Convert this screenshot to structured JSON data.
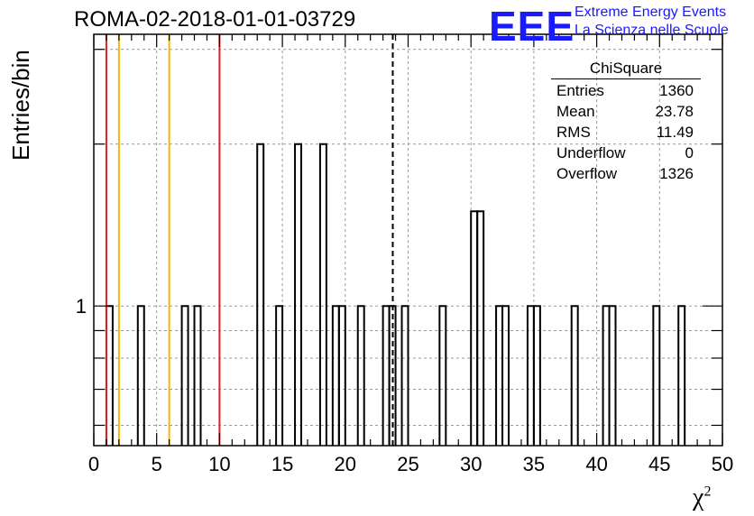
{
  "header": {
    "title": "ROMA-02-2018-01-01-03729",
    "logo_text": "EEE",
    "logo_line1": "Extreme Energy Events",
    "logo_line2": "La Scienza nelle Scuole"
  },
  "stats": {
    "title": "ChiSquare",
    "rows": [
      {
        "label": "Entries",
        "value": "1360"
      },
      {
        "label": "Mean",
        "value": "23.78"
      },
      {
        "label": "RMS",
        "value": "11.49"
      },
      {
        "label": "Underflow",
        "value": "0"
      },
      {
        "label": "Overflow",
        "value": "1326"
      }
    ]
  },
  "chart_data": {
    "type": "bar",
    "title": "ROMA-02-2018-01-01-03729",
    "xlabel": "χ",
    "xlabel_superscript": "2",
    "ylabel": "Entries/bin",
    "xlim": [
      0,
      50
    ],
    "ylog": true,
    "ylim": [
      0.55,
      3.2
    ],
    "xticks": [
      0,
      5,
      10,
      15,
      20,
      25,
      30,
      35,
      40,
      45,
      50
    ],
    "yticks": [
      1
    ],
    "grid": true,
    "bin_width": 0.5,
    "bins": [
      {
        "x": 1.0,
        "value": 1
      },
      {
        "x": 3.5,
        "value": 1
      },
      {
        "x": 7.0,
        "value": 1
      },
      {
        "x": 8.0,
        "value": 1
      },
      {
        "x": 13.0,
        "value": 2
      },
      {
        "x": 14.5,
        "value": 1
      },
      {
        "x": 16.0,
        "value": 2
      },
      {
        "x": 18.0,
        "value": 2
      },
      {
        "x": 19.0,
        "value": 1
      },
      {
        "x": 19.5,
        "value": 1
      },
      {
        "x": 21.0,
        "value": 1
      },
      {
        "x": 23.0,
        "value": 1
      },
      {
        "x": 23.5,
        "value": 1
      },
      {
        "x": 24.5,
        "value": 1
      },
      {
        "x": 27.5,
        "value": 1
      },
      {
        "x": 30.0,
        "value": 1.5
      },
      {
        "x": 30.5,
        "value": 1.5
      },
      {
        "x": 32.0,
        "value": 1
      },
      {
        "x": 32.5,
        "value": 1
      },
      {
        "x": 34.5,
        "value": 1
      },
      {
        "x": 35.0,
        "value": 1
      },
      {
        "x": 38.0,
        "value": 1
      },
      {
        "x": 40.5,
        "value": 1
      },
      {
        "x": 41.0,
        "value": 1
      },
      {
        "x": 44.5,
        "value": 1
      },
      {
        "x": 46.5,
        "value": 1
      }
    ],
    "vertical_lines": [
      {
        "x": 1.0,
        "color": "#e02020",
        "style": "solid"
      },
      {
        "x": 2.0,
        "color": "#f5b800",
        "style": "solid"
      },
      {
        "x": 6.0,
        "color": "#f5b800",
        "style": "solid"
      },
      {
        "x": 10.0,
        "color": "#e02020",
        "style": "solid"
      },
      {
        "x": 23.78,
        "color": "#000000",
        "style": "dashed"
      }
    ]
  }
}
